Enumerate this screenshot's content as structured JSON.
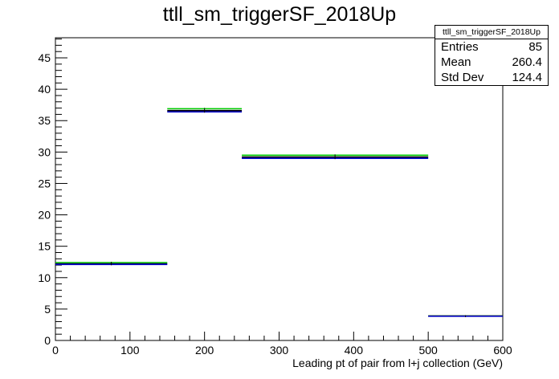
{
  "chart_data": {
    "type": "histogram",
    "title": "ttll_sm_triggerSF_2018Up",
    "xlabel": "Leading pt of pair from l+j collection (GeV)",
    "ylabel": "",
    "xlim": [
      0,
      600
    ],
    "ylim": [
      0,
      48.2
    ],
    "x_ticks": [
      0,
      100,
      200,
      300,
      400,
      500,
      600
    ],
    "y_ticks": [
      0,
      5,
      10,
      15,
      20,
      25,
      30,
      35,
      40,
      45
    ],
    "bins": [
      [
        0,
        150
      ],
      [
        150,
        250
      ],
      [
        250,
        500
      ],
      [
        500,
        600
      ]
    ],
    "series": [
      {
        "color": "#00cc00",
        "values": [
          12.4,
          36.9,
          29.5,
          3.9
        ]
      },
      {
        "color": "#000000",
        "values": [
          12.2,
          36.6,
          29.2,
          3.9
        ]
      },
      {
        "color": "#0000cc",
        "values": [
          12.1,
          36.4,
          29.0,
          3.85
        ]
      }
    ],
    "grid": false,
    "stats": {
      "name": "ttll_sm_triggerSF_2018Up",
      "rows": [
        {
          "label": "Entries",
          "value": "85"
        },
        {
          "label": "Mean",
          "value": "260.4"
        },
        {
          "label": "Std Dev",
          "value": "124.4"
        }
      ]
    }
  }
}
